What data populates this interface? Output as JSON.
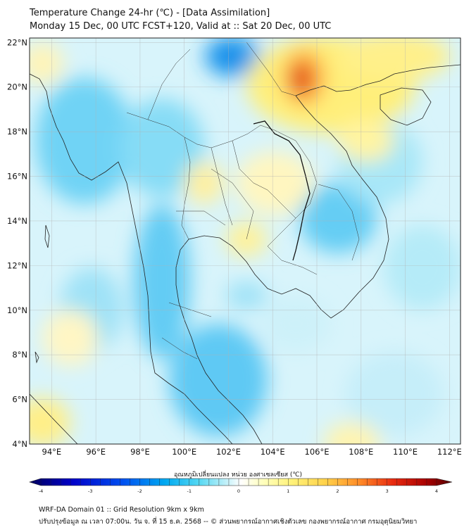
{
  "title": {
    "line1": "Temperature Change 24-hr (℃) - [Data Assimilation]",
    "line2": "Monday 15 Dec, 00 UTC FCST+120, Valid at :: Sat 20 Dec, 00 UTC"
  },
  "map": {
    "region": "Thailand and mainland Southeast Asia",
    "lon_range": [
      93,
      112.5
    ],
    "lat_range": [
      4,
      22.2
    ],
    "lat_ticks": [
      "4°N",
      "6°N",
      "8°N",
      "10°N",
      "12°N",
      "14°N",
      "16°N",
      "18°N",
      "20°N",
      "22°N"
    ],
    "lon_ticks": [
      "94°E",
      "96°E",
      "98°E",
      "100°E",
      "102°E",
      "104°E",
      "106°E",
      "108°E",
      "110°E",
      "112°E"
    ],
    "grid": true,
    "field_colors": {
      "cold": "#00a0ff",
      "cool": "#7fd9f7",
      "neutral": "#ffffff",
      "warm": "#ffee6a",
      "hot": "#e03010"
    }
  },
  "colorbar": {
    "title": "อุณหภูมิเปลี่ยนแปลง หน่วย องศาเซลเซียส (℃)",
    "range": [
      -4,
      4
    ],
    "tick_labels": [
      "-4",
      "-3",
      "-2",
      "-1",
      "0",
      "1",
      "2",
      "3",
      "4"
    ],
    "colors": [
      "#00005e",
      "#0000c8",
      "#0050f0",
      "#00a8f0",
      "#55d8f2",
      "#b8eef8",
      "#ffffff",
      "#ffffc0",
      "#fff27a",
      "#ffd24a",
      "#ff8c28",
      "#e82a10",
      "#a80000",
      "#560000"
    ]
  },
  "footer": {
    "line1": "WRF-DA Domain 01 :: Grid Resolution 9km x 9km",
    "line2": "ปรับปรุงข้อมูล ณ เวลา 07:00น. วัน จ. ที่ 15 ธ.ค. 2568 -- © ส่วนพยากรณ์อากาศเชิงตัวเลข กองพยากรณ์อากาศ กรมอุตุนิยมวิทยา"
  }
}
